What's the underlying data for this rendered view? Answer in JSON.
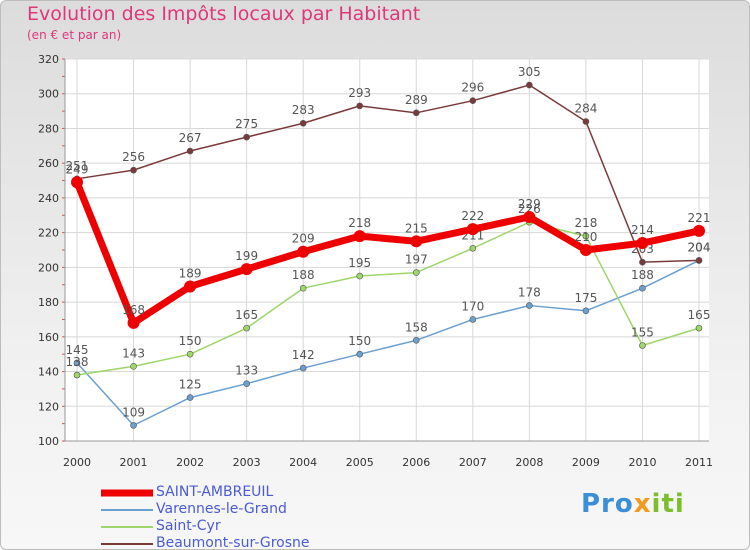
{
  "header": {
    "title": "Evolution des Impôts locaux par Habitant",
    "subtitle": "(en € et par an)"
  },
  "brand": {
    "part1": "Pro",
    "part2": "x",
    "part3": "iti"
  },
  "chart_data": {
    "type": "line",
    "title": "Evolution des Impôts locaux par Habitant",
    "subtitle": "(en € et par an)",
    "xlabel": "",
    "ylabel": "",
    "x": [
      "2000",
      "2001",
      "2002",
      "2003",
      "2004",
      "2005",
      "2006",
      "2007",
      "2008",
      "2009",
      "2010",
      "2011"
    ],
    "ylim": [
      100,
      320
    ],
    "yticks": [
      100,
      120,
      140,
      160,
      180,
      200,
      220,
      240,
      260,
      280,
      300,
      320
    ],
    "grid": true,
    "legend_position": "bottom-left",
    "series": [
      {
        "name": "SAINT-AMBREUIL",
        "color": "#ee0000",
        "emphasis": true,
        "values": [
          249,
          168,
          189,
          199,
          209,
          218,
          215,
          222,
          229,
          210,
          214,
          221
        ]
      },
      {
        "name": "Varennes-le-Grand",
        "color": "#6a9fd0",
        "emphasis": false,
        "values": [
          145,
          109,
          125,
          133,
          142,
          150,
          158,
          170,
          178,
          175,
          188,
          204
        ]
      },
      {
        "name": "Saint-Cyr",
        "color": "#9ed66a",
        "emphasis": false,
        "values": [
          138,
          143,
          150,
          165,
          188,
          195,
          197,
          211,
          226,
          218,
          155,
          165
        ]
      },
      {
        "name": "Beaumont-sur-Grosne",
        "color": "#7a3a3a",
        "emphasis": false,
        "values": [
          251,
          256,
          267,
          275,
          283,
          293,
          289,
          296,
          305,
          284,
          203,
          204
        ]
      }
    ]
  }
}
